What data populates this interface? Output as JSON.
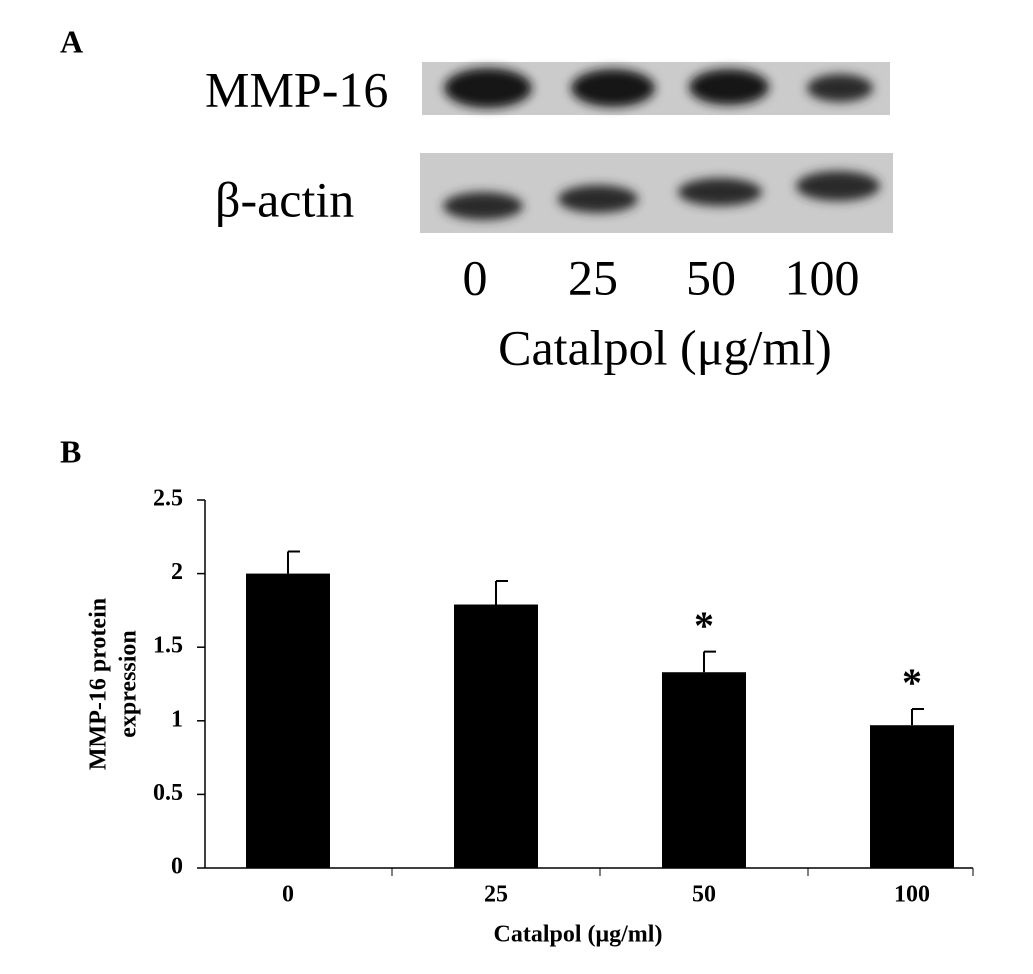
{
  "panel_a": {
    "label": "A",
    "rows": [
      "MMP-16",
      "β-actin"
    ],
    "lanes": [
      "0",
      "25",
      "50",
      "100"
    ],
    "x_label": "Catalpol (μg/ml)"
  },
  "chart_data": {
    "type": "bar",
    "panel_label": "B",
    "y_label": [
      "MMP-16 protein",
      "expression"
    ],
    "x_label": "Catalpol (μg/ml)",
    "categories": [
      "0",
      "25",
      "50",
      "100"
    ],
    "values": [
      2.0,
      1.79,
      1.33,
      0.97
    ],
    "errors": [
      0.15,
      0.16,
      0.14,
      0.11
    ],
    "value_annotations": [
      null,
      null,
      "*",
      "*"
    ],
    "color": "#000000",
    "ylim": [
      0,
      2.5
    ],
    "yticks": [
      0,
      0.5,
      1,
      1.5,
      2,
      2.5
    ]
  }
}
